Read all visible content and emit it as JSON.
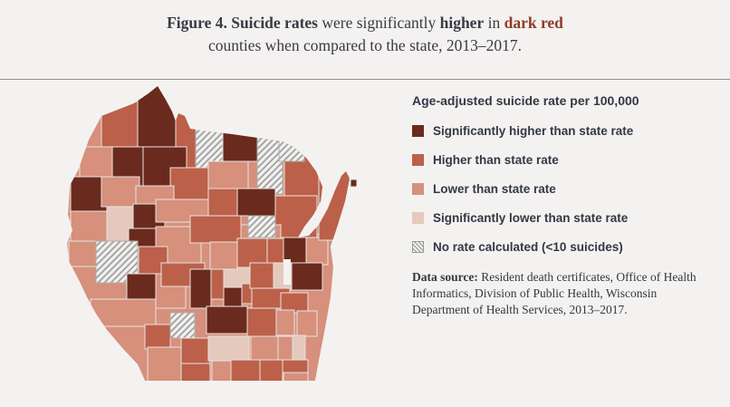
{
  "title": {
    "line1_parts": [
      {
        "text": "Figure 4. Suicide rates",
        "bold": true,
        "accent": false
      },
      {
        "text": " were significantly ",
        "bold": false,
        "accent": false
      },
      {
        "text": "higher",
        "bold": true,
        "accent": false
      },
      {
        "text": " in ",
        "bold": false,
        "accent": false
      },
      {
        "text": "dark red",
        "bold": true,
        "accent": true
      }
    ],
    "line2": "counties when compared to the state, 2013–2017."
  },
  "legend": {
    "title": "Age-adjusted suicide rate per 100,000",
    "items": [
      {
        "label": "Significantly higher than state rate",
        "swatch": "color",
        "color": "#6b2a1e"
      },
      {
        "label": "Higher than state rate",
        "swatch": "color",
        "color": "#bc604a"
      },
      {
        "label": "Lower than state rate",
        "swatch": "color",
        "color": "#d6907c"
      },
      {
        "label": "Significantly lower than state rate",
        "swatch": "color",
        "color": "#e5c9bd"
      },
      {
        "label": "No rate calculated (<10 suicides)",
        "swatch": "hatch",
        "color": null
      }
    ]
  },
  "source": {
    "label": "Data source:",
    "text": " Resident death certificates, Office of Health Informatics, Division of Public Health, Wisconsin Department of Health Services, 2013–2017."
  },
  "colors": {
    "background": "#f4f2f0",
    "title_text": "#3b3a45",
    "accent_dark_red": "#8f3a28",
    "legend_text": "#333845",
    "divider": "#8f8f8f",
    "county_border": "#e7e4e0",
    "hatch_line": "#a6a6a6",
    "hatch_bg": "#f3f2f0",
    "hatch_border": "#b0ada9"
  },
  "chart_data": {
    "type": "choropleth",
    "region": "Wisconsin counties",
    "measure": "Age-adjusted suicide rate per 100,000",
    "period": "2013–2017",
    "legend_position": "right",
    "categories": [
      {
        "index": 0,
        "label": "Significantly higher than state rate",
        "color": "#6b2a1e"
      },
      {
        "index": 1,
        "label": "Higher than state rate",
        "color": "#bc604a"
      },
      {
        "index": 2,
        "label": "Lower than state rate",
        "color": "#d6907c"
      },
      {
        "index": 3,
        "label": "Significantly lower than state rate",
        "color": "#e5c9bd"
      },
      {
        "index": 4,
        "label": "No rate calculated (<10 suicides)",
        "pattern": "diagonal-hatch"
      }
    ],
    "cell_format": "[x, y, width, height, category_index] in 390x354 map coordinates (approximate county blocks as rendered)",
    "cells": [
      [
        52,
        22,
        42,
        50,
        1
      ],
      [
        92,
        5,
        44,
        67,
        0
      ],
      [
        134,
        30,
        22,
        70,
        1
      ],
      [
        156,
        40,
        30,
        58,
        4
      ],
      [
        186,
        55,
        46,
        33,
        0
      ],
      [
        254,
        74,
        58,
        94,
        1
      ],
      [
        224,
        60,
        28,
        64,
        4
      ],
      [
        248,
        62,
        28,
        26,
        4
      ],
      [
        28,
        72,
        36,
        40,
        2
      ],
      [
        64,
        72,
        34,
        46,
        0
      ],
      [
        98,
        72,
        48,
        48,
        0
      ],
      [
        128,
        95,
        44,
        40,
        1
      ],
      [
        170,
        88,
        44,
        30,
        2
      ],
      [
        170,
        118,
        32,
        38,
        1
      ],
      [
        202,
        118,
        42,
        30,
        0
      ],
      [
        244,
        126,
        46,
        46,
        1
      ],
      [
        202,
        158,
        48,
        16,
        2
      ],
      [
        214,
        148,
        30,
        24,
        4
      ],
      [
        18,
        105,
        46,
        38,
        0
      ],
      [
        52,
        105,
        42,
        33,
        2
      ],
      [
        90,
        115,
        42,
        30,
        2
      ],
      [
        18,
        143,
        40,
        33,
        2
      ],
      [
        16,
        176,
        42,
        28,
        2
      ],
      [
        58,
        138,
        32,
        40,
        3
      ],
      [
        87,
        135,
        35,
        27,
        0
      ],
      [
        82,
        162,
        40,
        20,
        0
      ],
      [
        112,
        130,
        58,
        25,
        2
      ],
      [
        112,
        160,
        50,
        45,
        2
      ],
      [
        150,
        148,
        56,
        30,
        1
      ],
      [
        46,
        176,
        46,
        46,
        4
      ],
      [
        93,
        182,
        32,
        33,
        1
      ],
      [
        112,
        212,
        33,
        38,
        2
      ],
      [
        118,
        200,
        48,
        26,
        1
      ],
      [
        80,
        212,
        32,
        34,
        0
      ],
      [
        150,
        207,
        23,
        43,
        0
      ],
      [
        173,
        207,
        14,
        33,
        1
      ],
      [
        187,
        205,
        31,
        23,
        3
      ],
      [
        187,
        227,
        20,
        23,
        0
      ],
      [
        207,
        223,
        23,
        22,
        1
      ],
      [
        172,
        177,
        30,
        30,
        2
      ],
      [
        202,
        173,
        33,
        32,
        1
      ],
      [
        235,
        173,
        18,
        30,
        1
      ],
      [
        253,
        172,
        25,
        31,
        0
      ],
      [
        278,
        172,
        24,
        30,
        2
      ],
      [
        292,
        95,
        34,
        80,
        1
      ],
      [
        216,
        200,
        28,
        28,
        1
      ],
      [
        242,
        200,
        24,
        30,
        3
      ],
      [
        262,
        200,
        34,
        30,
        0
      ],
      [
        218,
        228,
        42,
        22,
        1
      ],
      [
        250,
        233,
        30,
        22,
        1
      ],
      [
        268,
        253,
        22,
        28,
        2
      ],
      [
        40,
        240,
        72,
        30,
        2
      ],
      [
        100,
        268,
        28,
        27,
        1
      ],
      [
        128,
        255,
        27,
        28,
        4
      ],
      [
        103,
        293,
        37,
        42,
        2
      ],
      [
        140,
        283,
        32,
        28,
        1
      ],
      [
        140,
        311,
        32,
        24,
        1
      ],
      [
        168,
        248,
        45,
        30,
        0
      ],
      [
        170,
        281,
        45,
        27,
        3
      ],
      [
        213,
        250,
        32,
        31,
        1
      ],
      [
        245,
        252,
        20,
        28,
        2
      ],
      [
        217,
        281,
        30,
        26,
        2
      ],
      [
        247,
        281,
        16,
        26,
        2
      ],
      [
        263,
        280,
        14,
        27,
        3
      ],
      [
        174,
        308,
        26,
        27,
        2
      ],
      [
        195,
        307,
        32,
        28,
        1
      ],
      [
        227,
        307,
        25,
        26,
        1
      ],
      [
        252,
        307,
        28,
        14,
        1
      ],
      [
        253,
        321,
        27,
        13,
        2
      ]
    ],
    "islands": [
      [
        327,
        108,
        7,
        8,
        0
      ]
    ],
    "lakes": [
      [
        253,
        196,
        8,
        28
      ]
    ]
  }
}
